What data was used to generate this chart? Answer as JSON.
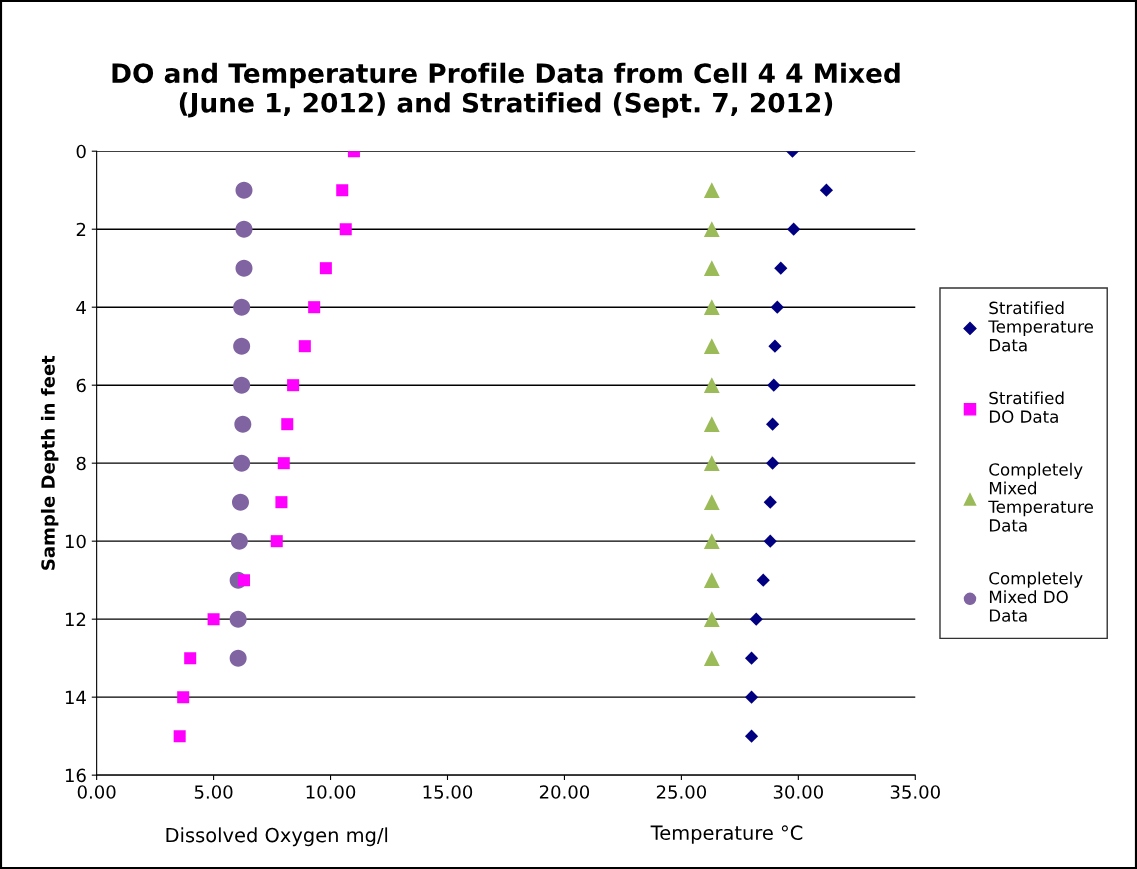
{
  "chart_data": {
    "type": "scatter",
    "title": "DO and Temperature Profile Data from Cell 4 4 Mixed\n(June 1, 2012) and Stratified (Sept. 7, 2012)",
    "xlabel": "Dissolved Oxygen mg/l",
    "ylabel": "Sample Depth in feet",
    "annotations": [
      "Temperature °C"
    ],
    "xlim": [
      0,
      35
    ],
    "xticks": [
      {
        "value": 0,
        "label": "0.00"
      },
      {
        "value": 5,
        "label": "5.00"
      },
      {
        "value": 10,
        "label": "10.00"
      },
      {
        "value": 15,
        "label": "15.00"
      },
      {
        "value": 20,
        "label": "20.00"
      },
      {
        "value": 25,
        "label": "25.00"
      },
      {
        "value": 30,
        "label": "30.00"
      },
      {
        "value": 35,
        "label": "35.00"
      }
    ],
    "ylim": [
      16,
      0
    ],
    "yticks": [
      0,
      2,
      4,
      6,
      8,
      10,
      12,
      14,
      16
    ],
    "grid": "y",
    "legend": "right",
    "series": [
      {
        "name": "Stratified Temperature Data",
        "color": "#000080",
        "marker": "diamond",
        "x": [
          29.75,
          31.2,
          29.8,
          29.25,
          29.1,
          29.0,
          28.95,
          28.9,
          28.9,
          28.8,
          28.8,
          28.5,
          28.2,
          28.0,
          28.0,
          28.0
        ],
        "values": [
          0,
          1,
          2,
          3,
          4,
          5,
          6,
          7,
          8,
          9,
          10,
          11,
          12,
          13,
          14,
          15
        ]
      },
      {
        "name": "Stratified DO Data",
        "color": "#ff00ff",
        "marker": "square",
        "x": [
          11.0,
          10.5,
          10.65,
          9.8,
          9.3,
          8.9,
          8.4,
          8.15,
          8.0,
          7.9,
          7.7,
          6.3,
          5.0,
          4.0,
          3.7,
          3.55
        ],
        "values": [
          0,
          1,
          2,
          3,
          4,
          5,
          6,
          7,
          8,
          9,
          10,
          11,
          12,
          13,
          14,
          15
        ]
      },
      {
        "name": "Completely Mixed Temperature Data",
        "color": "#9bbb59",
        "marker": "triangle",
        "x": [
          26.3,
          26.3,
          26.3,
          26.3,
          26.3,
          26.3,
          26.3,
          26.3,
          26.3,
          26.3,
          26.3,
          26.3,
          26.3
        ],
        "values": [
          1,
          2,
          3,
          4,
          5,
          6,
          7,
          8,
          9,
          10,
          11,
          12,
          13
        ]
      },
      {
        "name": "Completely Mixed DO Data",
        "color": "#8064a2",
        "marker": "circle",
        "x": [
          6.3,
          6.3,
          6.3,
          6.2,
          6.2,
          6.2,
          6.25,
          6.2,
          6.15,
          6.1,
          6.05,
          6.05,
          6.05
        ],
        "values": [
          1,
          2,
          3,
          4,
          5,
          6,
          7,
          8,
          9,
          10,
          11,
          12,
          13
        ]
      }
    ]
  }
}
